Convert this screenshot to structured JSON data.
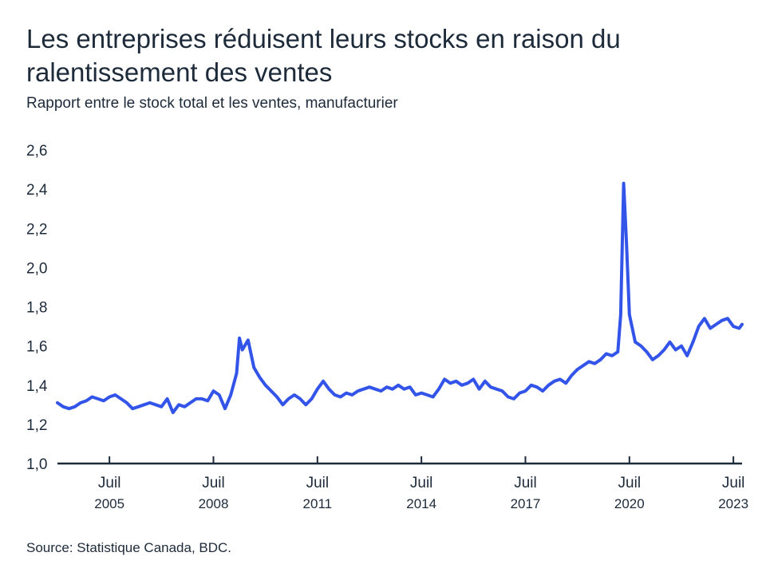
{
  "title": "Les entreprises réduisent leurs stocks en raison du ralentissement des ventes",
  "subtitle": "Rapport entre le stock total et les ventes, manufacturier",
  "source": "Source: Statistique Canada, BDC.",
  "colors": {
    "line": "#3354e8",
    "axis": "#1d2a3a",
    "text": "#1d2a3a"
  },
  "chart_data": {
    "type": "line",
    "ylim": [
      1.0,
      2.6
    ],
    "y_ticks": [
      "1,0",
      "1,2",
      "1,4",
      "1,6",
      "1,8",
      "2,0",
      "2,2",
      "2,4",
      "2,6"
    ],
    "y_tick_values": [
      1.0,
      1.2,
      1.4,
      1.6,
      1.8,
      2.0,
      2.2,
      2.4,
      2.6
    ],
    "x_range": [
      "2004-01",
      "2023-10"
    ],
    "x_ticks": [
      {
        "date": "2005-07",
        "label": "Juil",
        "year": "2005"
      },
      {
        "date": "2008-07",
        "label": "Juil",
        "year": "2008"
      },
      {
        "date": "2011-07",
        "label": "Juil",
        "year": "2011"
      },
      {
        "date": "2014-07",
        "label": "Juil",
        "year": "2014"
      },
      {
        "date": "2017-07",
        "label": "Juil",
        "year": "2017"
      },
      {
        "date": "2020-07",
        "label": "Juil",
        "year": "2020"
      },
      {
        "date": "2023-07",
        "label": "Juil",
        "year": "2023"
      }
    ],
    "grid": false,
    "series": [
      {
        "points": [
          [
            "2004-01",
            1.31
          ],
          [
            "2004-03",
            1.29
          ],
          [
            "2004-05",
            1.28
          ],
          [
            "2004-07",
            1.29
          ],
          [
            "2004-09",
            1.31
          ],
          [
            "2004-11",
            1.32
          ],
          [
            "2005-01",
            1.34
          ],
          [
            "2005-03",
            1.33
          ],
          [
            "2005-05",
            1.32
          ],
          [
            "2005-07",
            1.34
          ],
          [
            "2005-09",
            1.35
          ],
          [
            "2005-11",
            1.33
          ],
          [
            "2006-01",
            1.31
          ],
          [
            "2006-03",
            1.28
          ],
          [
            "2006-05",
            1.29
          ],
          [
            "2006-07",
            1.3
          ],
          [
            "2006-09",
            1.31
          ],
          [
            "2006-11",
            1.3
          ],
          [
            "2007-01",
            1.29
          ],
          [
            "2007-03",
            1.33
          ],
          [
            "2007-05",
            1.26
          ],
          [
            "2007-07",
            1.3
          ],
          [
            "2007-09",
            1.29
          ],
          [
            "2007-11",
            1.31
          ],
          [
            "2008-01",
            1.33
          ],
          [
            "2008-03",
            1.33
          ],
          [
            "2008-05",
            1.32
          ],
          [
            "2008-07",
            1.37
          ],
          [
            "2008-09",
            1.35
          ],
          [
            "2008-11",
            1.28
          ],
          [
            "2009-01",
            1.35
          ],
          [
            "2009-03",
            1.46
          ],
          [
            "2009-04",
            1.64
          ],
          [
            "2009-05",
            1.58
          ],
          [
            "2009-07",
            1.63
          ],
          [
            "2009-09",
            1.49
          ],
          [
            "2009-11",
            1.44
          ],
          [
            "2010-01",
            1.4
          ],
          [
            "2010-03",
            1.37
          ],
          [
            "2010-05",
            1.34
          ],
          [
            "2010-07",
            1.3
          ],
          [
            "2010-09",
            1.33
          ],
          [
            "2010-11",
            1.35
          ],
          [
            "2011-01",
            1.33
          ],
          [
            "2011-03",
            1.3
          ],
          [
            "2011-05",
            1.33
          ],
          [
            "2011-07",
            1.38
          ],
          [
            "2011-09",
            1.42
          ],
          [
            "2011-11",
            1.38
          ],
          [
            "2012-01",
            1.35
          ],
          [
            "2012-03",
            1.34
          ],
          [
            "2012-05",
            1.36
          ],
          [
            "2012-07",
            1.35
          ],
          [
            "2012-09",
            1.37
          ],
          [
            "2012-11",
            1.38
          ],
          [
            "2013-01",
            1.39
          ],
          [
            "2013-03",
            1.38
          ],
          [
            "2013-05",
            1.37
          ],
          [
            "2013-07",
            1.39
          ],
          [
            "2013-09",
            1.38
          ],
          [
            "2013-11",
            1.4
          ],
          [
            "2014-01",
            1.38
          ],
          [
            "2014-03",
            1.39
          ],
          [
            "2014-05",
            1.35
          ],
          [
            "2014-07",
            1.36
          ],
          [
            "2014-09",
            1.35
          ],
          [
            "2014-11",
            1.34
          ],
          [
            "2015-01",
            1.38
          ],
          [
            "2015-03",
            1.43
          ],
          [
            "2015-05",
            1.41
          ],
          [
            "2015-07",
            1.42
          ],
          [
            "2015-09",
            1.4
          ],
          [
            "2015-11",
            1.41
          ],
          [
            "2016-01",
            1.43
          ],
          [
            "2016-03",
            1.38
          ],
          [
            "2016-05",
            1.42
          ],
          [
            "2016-07",
            1.39
          ],
          [
            "2016-09",
            1.38
          ],
          [
            "2016-11",
            1.37
          ],
          [
            "2017-01",
            1.34
          ],
          [
            "2017-03",
            1.33
          ],
          [
            "2017-05",
            1.36
          ],
          [
            "2017-07",
            1.37
          ],
          [
            "2017-09",
            1.4
          ],
          [
            "2017-11",
            1.39
          ],
          [
            "2018-01",
            1.37
          ],
          [
            "2018-03",
            1.4
          ],
          [
            "2018-05",
            1.42
          ],
          [
            "2018-07",
            1.43
          ],
          [
            "2018-09",
            1.41
          ],
          [
            "2018-11",
            1.45
          ],
          [
            "2019-01",
            1.48
          ],
          [
            "2019-03",
            1.5
          ],
          [
            "2019-05",
            1.52
          ],
          [
            "2019-07",
            1.51
          ],
          [
            "2019-09",
            1.53
          ],
          [
            "2019-11",
            1.56
          ],
          [
            "2020-01",
            1.55
          ],
          [
            "2020-03",
            1.57
          ],
          [
            "2020-04",
            1.76
          ],
          [
            "2020-05",
            2.43
          ],
          [
            "2020-06",
            2.12
          ],
          [
            "2020-07",
            1.76
          ],
          [
            "2020-09",
            1.62
          ],
          [
            "2020-11",
            1.6
          ],
          [
            "2021-01",
            1.57
          ],
          [
            "2021-03",
            1.53
          ],
          [
            "2021-05",
            1.55
          ],
          [
            "2021-07",
            1.58
          ],
          [
            "2021-09",
            1.62
          ],
          [
            "2021-11",
            1.58
          ],
          [
            "2022-01",
            1.6
          ],
          [
            "2022-03",
            1.55
          ],
          [
            "2022-05",
            1.62
          ],
          [
            "2022-07",
            1.7
          ],
          [
            "2022-09",
            1.74
          ],
          [
            "2022-11",
            1.69
          ],
          [
            "2023-01",
            1.71
          ],
          [
            "2023-03",
            1.73
          ],
          [
            "2023-05",
            1.74
          ],
          [
            "2023-07",
            1.7
          ],
          [
            "2023-09",
            1.69
          ],
          [
            "2023-10",
            1.71
          ]
        ]
      }
    ]
  }
}
